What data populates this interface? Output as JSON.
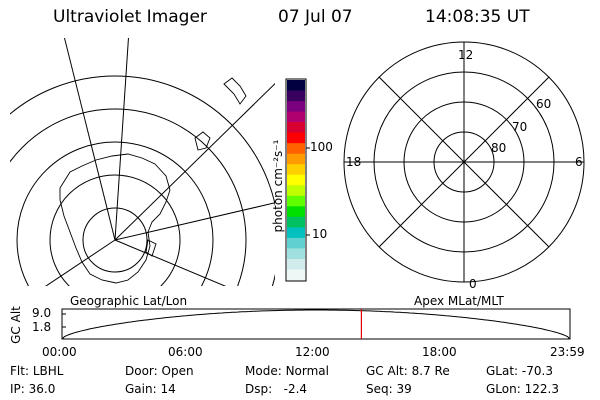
{
  "header": {
    "title": "Ultraviolet Imager",
    "date": "07 Jul 07",
    "time": "14:08:35 UT"
  },
  "left_panel": {
    "label": "Geographic Lat/Lon"
  },
  "right_panel": {
    "label": "Apex MLat/MLT",
    "mlt_labels": [
      "12",
      "18",
      "6",
      "0"
    ],
    "mlat_labels": [
      "60",
      "70",
      "80"
    ]
  },
  "colorbar": {
    "unit_label": "photon cm⁻²s⁻¹",
    "ticks": [
      "100",
      "10"
    ],
    "colors": [
      "#000040",
      "#3a0060",
      "#7a0080",
      "#b00070",
      "#d80030",
      "#ff0000",
      "#ff6000",
      "#ff9a00",
      "#ffd000",
      "#ffff00",
      "#c0ff00",
      "#60ff00",
      "#00e000",
      "#00c060",
      "#00c0c0",
      "#60d0d0",
      "#a0e0e0",
      "#d0ecec",
      "#eef6f6"
    ]
  },
  "gc_alt_plot": {
    "ylabel": "GC Alt",
    "yticks": [
      "9.0",
      "1.8"
    ],
    "xticks": [
      "00:00",
      "06:00",
      "12:00",
      "18:00",
      "23:59"
    ],
    "marker_time": "14:08:35",
    "marker_color": "#e00000"
  },
  "info_rows": [
    [
      {
        "label": "Flt:",
        "value": "LBHL"
      },
      {
        "label": "Door:",
        "value": "Open"
      },
      {
        "label": "Mode:",
        "value": "Normal"
      },
      {
        "label": "GC Alt:",
        "value": "8.7 Re"
      },
      {
        "label": "GLat:",
        "value": "-70.3"
      }
    ],
    [
      {
        "label": "IP:",
        "value": "36.0"
      },
      {
        "label": "Gain:",
        "value": "14"
      },
      {
        "label": "Dsp:",
        "value": "  -2.4"
      },
      {
        "label": "Seq:",
        "value": "39"
      },
      {
        "label": "GLon:",
        "value": "122.3"
      }
    ]
  ]
}
